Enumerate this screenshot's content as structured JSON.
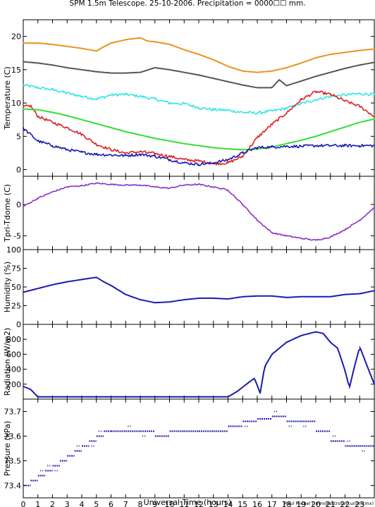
{
  "title": "SPM 1.5m Telescope. 25-10-2006. Precipitation = 0000☐☐ mm.",
  "credit": "Raul Michel (rmm@astrosen.unam.mx)",
  "chart_data": [
    {
      "type": "line",
      "ylabel": "Temperature (C)",
      "ylim": [
        -1,
        22.5
      ],
      "yticks": [
        0,
        5,
        10,
        15,
        20
      ],
      "series": [
        {
          "color": "#f0901e",
          "style": "line",
          "x": [
            0,
            1,
            2,
            3,
            4,
            5,
            5.3,
            6,
            7,
            8,
            8.5,
            9,
            10,
            11,
            12,
            13,
            14,
            15,
            16,
            17,
            18,
            19,
            20,
            21,
            22,
            23,
            24
          ],
          "y": [
            19,
            19,
            18.8,
            18.5,
            18.2,
            17.8,
            18.2,
            19,
            19.5,
            19.8,
            19.3,
            19.2,
            18.8,
            18,
            17.3,
            16.5,
            15.5,
            14.8,
            14.6,
            14.8,
            15.3,
            16,
            16.8,
            17.3,
            17.6,
            17.9,
            18.1
          ]
        },
        {
          "color": "#555555",
          "style": "line",
          "x": [
            0,
            1,
            2,
            3,
            4,
            5,
            6,
            7,
            8,
            9,
            10,
            11,
            12,
            13,
            14,
            15,
            16,
            17,
            17.5,
            18,
            19,
            20,
            21,
            22,
            23,
            24
          ],
          "y": [
            16.2,
            16,
            15.7,
            15.3,
            15,
            14.7,
            14.5,
            14.5,
            14.6,
            15.3,
            15,
            14.6,
            14.2,
            13.7,
            13.2,
            12.7,
            12.3,
            12.3,
            13.5,
            12.6,
            13.3,
            14,
            14.6,
            15.2,
            15.7,
            16.1
          ]
        },
        {
          "color": "#33e6e6",
          "style": "noisy",
          "x": [
            0,
            1,
            2,
            3,
            4,
            5,
            6,
            7,
            8,
            9,
            10,
            11,
            12,
            13,
            14,
            15,
            16,
            17,
            18,
            19,
            20,
            21,
            22,
            23,
            24
          ],
          "y": [
            12.7,
            12.3,
            12,
            11.5,
            11,
            10.6,
            11.2,
            11.3,
            11,
            10.6,
            10,
            9.9,
            9.3,
            9,
            8.9,
            8.6,
            8.5,
            8.8,
            9.2,
            9.9,
            10.5,
            11,
            11.2,
            11.4,
            11.3
          ]
        },
        {
          "color": "#dd2222",
          "style": "noisy",
          "x": [
            0,
            0.5,
            1,
            2,
            3,
            4,
            5,
            6,
            7,
            8,
            9,
            10,
            11,
            12,
            13,
            14,
            15,
            16,
            17,
            18,
            19,
            20,
            21,
            22,
            23,
            24
          ],
          "y": [
            9.4,
            9.6,
            8,
            7.1,
            6.3,
            5.3,
            3.8,
            3,
            2.5,
            2.7,
            2.4,
            2,
            1.5,
            1.3,
            0.9,
            1,
            2,
            4.8,
            6.8,
            8.5,
            10.5,
            11.7,
            11.3,
            10.3,
            9.5,
            8
          ]
        },
        {
          "color": "#33dd33",
          "style": "line",
          "x": [
            0,
            1,
            2,
            3,
            4,
            5,
            6,
            7,
            8,
            9,
            10,
            11,
            12,
            13,
            14,
            15,
            16,
            17,
            18,
            19,
            20,
            21,
            22,
            23,
            24
          ],
          "y": [
            9.1,
            9,
            8.6,
            8.1,
            7.5,
            6.9,
            6.3,
            5.7,
            5.2,
            4.7,
            4.3,
            3.9,
            3.6,
            3.3,
            3.1,
            3,
            3.1,
            3.4,
            3.9,
            4.4,
            5,
            5.7,
            6.4,
            7.1,
            7.6
          ]
        },
        {
          "color": "#1a1ab0",
          "style": "noisy",
          "x": [
            0,
            1,
            2,
            3,
            4,
            5,
            6,
            7,
            8,
            9,
            10,
            11,
            12,
            13,
            14,
            15,
            16,
            17,
            18,
            19,
            20,
            21,
            22,
            23,
            24
          ],
          "y": [
            6.2,
            4.3,
            3.6,
            3,
            2.6,
            2.3,
            2.2,
            2.1,
            2.3,
            2,
            1.5,
            1,
            0.8,
            1,
            1.5,
            2.5,
            3.3,
            3.4,
            3.5,
            3.5,
            3.6,
            3.6,
            3.6,
            3.6,
            3.6
          ]
        }
      ]
    },
    {
      "type": "line",
      "ylabel": "Tpri-Tdome (C)",
      "ylim": [
        -7.2,
        4.5
      ],
      "yticks": [
        -5,
        0
      ],
      "series": [
        {
          "color": "#8833cc",
          "style": "noisy",
          "x": [
            0,
            1,
            2,
            3,
            4,
            5,
            6,
            7,
            8,
            9,
            10,
            11,
            12,
            13,
            14,
            15,
            16,
            17,
            18,
            19,
            20,
            21,
            22,
            23,
            24
          ],
          "y": [
            -0.3,
            1,
            2,
            2.8,
            3,
            3.4,
            3.2,
            3.1,
            3.1,
            2.8,
            2.6,
            3.1,
            3.2,
            2.8,
            2.3,
            0,
            -2.5,
            -4.5,
            -5,
            -5.4,
            -5.7,
            -5.2,
            -4,
            -2.5,
            -0.5
          ]
        }
      ]
    },
    {
      "type": "line",
      "ylabel": "Humidity (%)",
      "ylim": [
        0,
        100
      ],
      "yticks": [
        0,
        25,
        50,
        75,
        100
      ],
      "series": [
        {
          "color": "#1a1ab0",
          "style": "line",
          "x": [
            0,
            1,
            2,
            3,
            4,
            5,
            5.5,
            6,
            7,
            8,
            9,
            10,
            11,
            12,
            13,
            14,
            15,
            16,
            17,
            18,
            19,
            20,
            21,
            22,
            23,
            24
          ],
          "y": [
            43,
            48,
            53,
            57,
            60,
            63,
            57,
            52,
            40,
            33,
            29,
            30,
            33,
            35,
            35,
            34,
            37,
            38,
            38,
            36,
            37,
            37,
            37,
            40,
            41,
            45
          ]
        }
      ]
    },
    {
      "type": "line",
      "ylabel": "Radiation (W/m2)",
      "ylim": [
        0,
        1000
      ],
      "yticks": [
        200,
        400,
        600,
        800
      ],
      "series": [
        {
          "color": "#1a1ab0",
          "style": "line",
          "x": [
            0,
            0.5,
            1,
            2,
            5,
            10,
            14,
            14.6,
            15.8,
            16.2,
            16.5,
            17,
            18,
            19,
            20,
            20.5,
            21,
            21.5,
            22,
            22.3,
            22.6,
            23,
            24
          ],
          "y": [
            170,
            130,
            30,
            30,
            30,
            30,
            30,
            100,
            280,
            80,
            430,
            600,
            760,
            850,
            900,
            880,
            760,
            680,
            380,
            150,
            400,
            700,
            200
          ]
        }
      ]
    },
    {
      "type": "scatter",
      "ylabel": "Pressure (kPa)",
      "ylim": [
        73.35,
        73.75
      ],
      "yticks": [
        73.4,
        73.5,
        73.6,
        73.7
      ],
      "series": [
        {
          "color": "#1a1ab0",
          "style": "steps",
          "x": [
            0,
            0.5,
            1,
            1.5,
            2,
            2.5,
            3,
            3.5,
            4,
            4.5,
            5,
            5.5,
            6,
            7,
            8,
            9,
            10,
            11,
            12,
            13,
            14,
            15,
            16,
            17,
            18,
            19,
            20,
            21,
            22,
            23,
            24
          ],
          "y": [
            73.4,
            73.42,
            73.44,
            73.46,
            73.48,
            73.5,
            73.52,
            73.54,
            73.56,
            73.58,
            73.6,
            73.62,
            73.62,
            73.62,
            73.62,
            73.6,
            73.62,
            73.62,
            73.62,
            73.62,
            73.64,
            73.66,
            73.67,
            73.68,
            73.66,
            73.66,
            73.62,
            73.58,
            73.56,
            73.56,
            73.56
          ]
        }
      ]
    }
  ],
  "xaxis": {
    "xlabel": "Universal Time (hours)",
    "xlim": [
      0,
      24
    ],
    "ticks": [
      0,
      1,
      2,
      3,
      4,
      5,
      6,
      7,
      8,
      9,
      10,
      11,
      12,
      13,
      14,
      15,
      16,
      17,
      18,
      19,
      20,
      21,
      22,
      23
    ]
  }
}
